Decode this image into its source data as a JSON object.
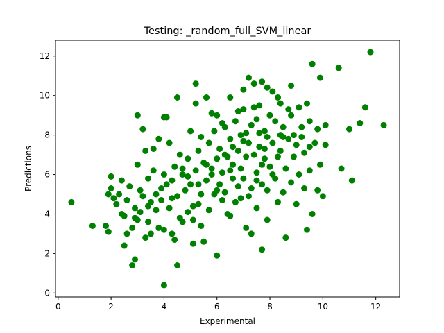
{
  "chart_data": {
    "type": "scatter",
    "title": "Testing: _random_full_SVM_linear",
    "xlabel": "Experimental",
    "ylabel": "Predictions",
    "xlim": [
      -0.1,
      12.9
    ],
    "ylim": [
      -0.2,
      12.8
    ],
    "xticks": [
      0,
      2,
      4,
      6,
      8,
      10,
      12
    ],
    "yticks": [
      0,
      2,
      4,
      6,
      8,
      10,
      12
    ],
    "grid": false,
    "legend": "none",
    "marker_color": "#008000",
    "series": [
      {
        "points": [
          [
            0.5,
            4.6
          ],
          [
            1.3,
            3.4
          ],
          [
            1.8,
            3.4
          ],
          [
            1.9,
            3.1
          ],
          [
            1.9,
            5.0
          ],
          [
            2.0,
            5.3
          ],
          [
            2.0,
            5.9
          ],
          [
            2.1,
            4.8
          ],
          [
            2.2,
            4.5
          ],
          [
            2.3,
            5.0
          ],
          [
            2.4,
            5.7
          ],
          [
            2.4,
            4.0
          ],
          [
            2.5,
            3.9
          ],
          [
            2.5,
            2.4
          ],
          [
            2.6,
            3.0
          ],
          [
            2.6,
            4.7
          ],
          [
            2.7,
            5.4
          ],
          [
            2.8,
            1.4
          ],
          [
            2.8,
            3.3
          ],
          [
            2.9,
            1.7
          ],
          [
            2.9,
            4.3
          ],
          [
            3.0,
            3.7
          ],
          [
            3.0,
            6.5
          ],
          [
            3.0,
            9.0
          ],
          [
            3.1,
            4.1
          ],
          [
            3.1,
            5.2
          ],
          [
            3.2,
            8.3
          ],
          [
            3.2,
            4.9
          ],
          [
            3.3,
            2.8
          ],
          [
            3.3,
            7.2
          ],
          [
            3.4,
            3.6
          ],
          [
            3.4,
            5.8
          ],
          [
            3.5,
            3.0
          ],
          [
            3.5,
            4.6
          ],
          [
            3.6,
            7.3
          ],
          [
            3.6,
            6.2
          ],
          [
            3.7,
            4.2
          ],
          [
            3.7,
            5.0
          ],
          [
            3.8,
            3.3
          ],
          [
            3.8,
            7.8
          ],
          [
            3.9,
            4.7
          ],
          [
            4.0,
            6.0
          ],
          [
            4.0,
            8.9
          ],
          [
            4.0,
            0.4
          ],
          [
            4.1,
            8.9
          ],
          [
            4.1,
            5.5
          ],
          [
            4.2,
            4.3
          ],
          [
            4.2,
            7.6
          ],
          [
            4.3,
            3.0
          ],
          [
            4.3,
            5.7
          ],
          [
            4.4,
            2.7
          ],
          [
            4.4,
            6.4
          ],
          [
            4.5,
            9.9
          ],
          [
            4.5,
            1.4
          ],
          [
            4.5,
            4.9
          ],
          [
            4.6,
            7.0
          ],
          [
            4.7,
            3.6
          ],
          [
            4.7,
            6.0
          ],
          [
            4.8,
            5.2
          ],
          [
            4.9,
            6.8
          ],
          [
            4.9,
            4.1
          ],
          [
            5.0,
            8.2
          ],
          [
            5.0,
            5.5
          ],
          [
            5.1,
            3.7
          ],
          [
            5.1,
            2.5
          ],
          [
            5.2,
            6.2
          ],
          [
            5.2,
            9.6
          ],
          [
            5.2,
            10.6
          ],
          [
            5.3,
            4.5
          ],
          [
            5.3,
            7.2
          ],
          [
            5.4,
            5.0
          ],
          [
            5.4,
            3.4
          ],
          [
            5.5,
            6.6
          ],
          [
            5.5,
            2.6
          ],
          [
            5.6,
            9.9
          ],
          [
            5.6,
            5.7
          ],
          [
            5.7,
            7.6
          ],
          [
            5.7,
            4.2
          ],
          [
            5.8,
            9.1
          ],
          [
            5.8,
            6.3
          ],
          [
            5.9,
            5.0
          ],
          [
            5.9,
            8.2
          ],
          [
            6.0,
            9.0
          ],
          [
            6.0,
            6.8
          ],
          [
            6.0,
            1.9
          ],
          [
            6.1,
            5.5
          ],
          [
            6.1,
            7.3
          ],
          [
            6.2,
            4.7
          ],
          [
            6.2,
            6.1
          ],
          [
            6.3,
            8.4
          ],
          [
            6.3,
            5.1
          ],
          [
            6.4,
            6.9
          ],
          [
            6.4,
            4.0
          ],
          [
            6.5,
            7.8
          ],
          [
            6.5,
            3.9
          ],
          [
            6.5,
            9.9
          ],
          [
            6.6,
            5.8
          ],
          [
            6.6,
            6.5
          ],
          [
            6.7,
            8.7
          ],
          [
            6.7,
            4.6
          ],
          [
            6.8,
            7.2
          ],
          [
            6.8,
            5.4
          ],
          [
            6.9,
            6.3
          ],
          [
            6.9,
            8.0
          ],
          [
            7.0,
            9.3
          ],
          [
            7.0,
            5.8
          ],
          [
            7.0,
            10.3
          ],
          [
            7.1,
            3.3
          ],
          [
            7.1,
            6.9
          ],
          [
            7.2,
            7.6
          ],
          [
            7.2,
            4.9
          ],
          [
            7.3,
            3.0
          ],
          [
            7.3,
            8.5
          ],
          [
            7.3,
            5.3
          ],
          [
            7.4,
            7.0
          ],
          [
            7.4,
            10.6
          ],
          [
            7.5,
            6.1
          ],
          [
            7.5,
            8.8
          ],
          [
            7.5,
            4.3
          ],
          [
            7.6,
            9.5
          ],
          [
            7.6,
            7.4
          ],
          [
            7.7,
            2.2
          ],
          [
            7.7,
            5.5
          ],
          [
            7.7,
            10.7
          ],
          [
            7.8,
            6.8
          ],
          [
            7.8,
            8.2
          ],
          [
            7.9,
            7.9
          ],
          [
            7.9,
            5.2
          ],
          [
            7.9,
            3.7
          ],
          [
            8.0,
            9.0
          ],
          [
            8.0,
            6.4
          ],
          [
            8.1,
            7.6
          ],
          [
            8.1,
            10.2
          ],
          [
            8.2,
            5.8
          ],
          [
            8.2,
            8.7
          ],
          [
            8.3,
            6.9
          ],
          [
            8.3,
            4.6
          ],
          [
            8.4,
            9.6
          ],
          [
            8.4,
            7.2
          ],
          [
            8.5,
            5.1
          ],
          [
            8.5,
            8.4
          ],
          [
            8.6,
            6.3
          ],
          [
            8.6,
            2.8
          ],
          [
            8.7,
            7.8
          ],
          [
            8.7,
            9.3
          ],
          [
            8.8,
            5.6
          ],
          [
            8.8,
            10.5
          ],
          [
            8.9,
            6.9
          ],
          [
            8.9,
            8.0
          ],
          [
            9.0,
            4.5
          ],
          [
            9.0,
            7.5
          ],
          [
            9.1,
            9.4
          ],
          [
            9.1,
            6.0
          ],
          [
            9.2,
            8.4
          ],
          [
            9.3,
            5.3
          ],
          [
            9.3,
            7.1
          ],
          [
            9.4,
            3.2
          ],
          [
            9.4,
            9.6
          ],
          [
            9.5,
            6.2
          ],
          [
            9.5,
            8.7
          ],
          [
            9.6,
            11.6
          ],
          [
            9.6,
            4.0
          ],
          [
            9.7,
            7.6
          ],
          [
            9.8,
            5.2
          ],
          [
            9.8,
            8.3
          ],
          [
            9.9,
            6.5
          ],
          [
            9.9,
            10.9
          ],
          [
            10.0,
            4.9
          ],
          [
            10.1,
            8.5
          ],
          [
            10.1,
            7.5
          ],
          [
            10.6,
            11.4
          ],
          [
            10.7,
            6.3
          ],
          [
            11.0,
            8.3
          ],
          [
            11.1,
            5.7
          ],
          [
            11.4,
            8.6
          ],
          [
            11.6,
            9.4
          ],
          [
            11.8,
            12.2
          ],
          [
            12.3,
            8.5
          ],
          [
            7.2,
            10.9
          ],
          [
            6.8,
            9.2
          ],
          [
            7.6,
            8.1
          ],
          [
            8.3,
            9.9
          ],
          [
            7.9,
            10.4
          ],
          [
            6.6,
            7.4
          ],
          [
            5.6,
            6.5
          ],
          [
            4.9,
            5.9
          ],
          [
            4.3,
            4.8
          ],
          [
            3.9,
            5.3
          ],
          [
            3.4,
            4.4
          ],
          [
            2.9,
            3.8
          ],
          [
            5.4,
            7.9
          ],
          [
            6.2,
            8.6
          ],
          [
            7.0,
            7.7
          ],
          [
            7.7,
            6.5
          ],
          [
            8.5,
            7.9
          ],
          [
            9.2,
            7.9
          ],
          [
            6.0,
            5.2
          ],
          [
            5.1,
            4.4
          ],
          [
            4.6,
            3.8
          ],
          [
            4.0,
            3.2
          ],
          [
            6.9,
            4.8
          ],
          [
            7.5,
            5.7
          ],
          [
            8.1,
            6.0
          ],
          [
            5.8,
            6.0
          ],
          [
            6.5,
            6.2
          ],
          [
            7.1,
            8.1
          ],
          [
            7.8,
            7.3
          ],
          [
            8.4,
            8.0
          ],
          [
            5.3,
            5.5
          ],
          [
            4.7,
            6.3
          ],
          [
            6.3,
            7.0
          ],
          [
            7.4,
            9.4
          ],
          [
            8.8,
            9.0
          ],
          [
            9.5,
            7.4
          ]
        ]
      }
    ]
  }
}
